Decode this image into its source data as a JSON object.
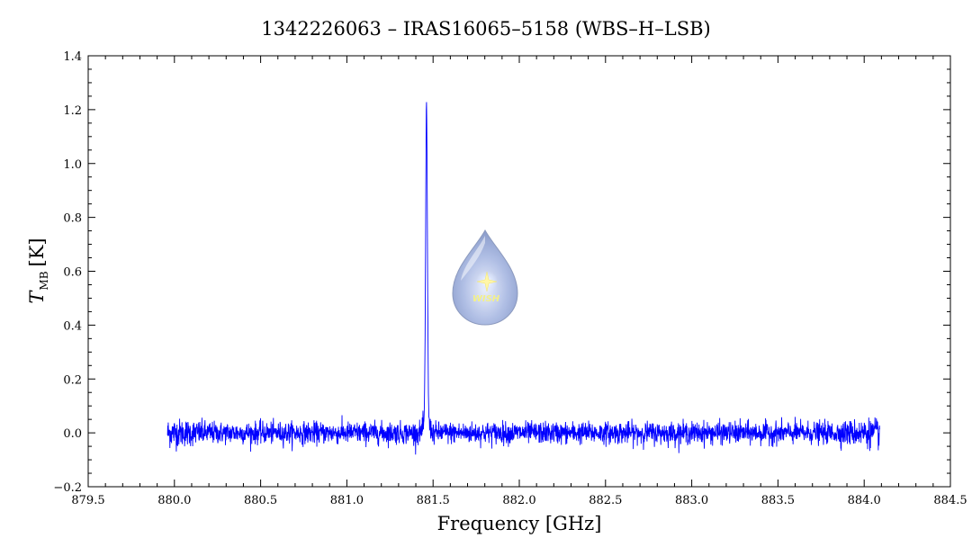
{
  "chart_data": {
    "type": "line",
    "title": "1342226063 – IRAS16065–5158 (WBS–H–LSB)",
    "xlabel": "Frequency [GHz]",
    "ylabel": "T",
    "ylabel_subscript": "MB",
    "ylabel_unit": "[K]",
    "xlim": [
      879.5,
      884.5
    ],
    "ylim": [
      -0.2,
      1.4
    ],
    "xticks": [
      879.5,
      880.0,
      880.5,
      881.0,
      881.5,
      882.0,
      882.5,
      883.0,
      883.5,
      884.0,
      884.5
    ],
    "xtick_labels": [
      "879.5",
      "880.0",
      "880.5",
      "881.0",
      "881.5",
      "882.0",
      "882.5",
      "883.0",
      "883.5",
      "884.0",
      "884.5"
    ],
    "yticks": [
      -0.2,
      0.0,
      0.2,
      0.4,
      0.6,
      0.8,
      1.0,
      1.2,
      1.4
    ],
    "ytick_labels": [
      "−0.2",
      "0.0",
      "0.2",
      "0.4",
      "0.6",
      "0.8",
      "1.0",
      "1.2",
      "1.4"
    ],
    "grid": false,
    "series_color": "#0000ff",
    "spectrum": {
      "x_start": 879.96,
      "x_end": 884.09,
      "baseline": 0.0,
      "noise_rms": 0.02,
      "line_center": 881.462,
      "line_peak": 1.17,
      "line_fwhm": 0.012,
      "wing_amplitude": 0.05,
      "wing_width": 0.035
    },
    "watermark": "WISH"
  }
}
